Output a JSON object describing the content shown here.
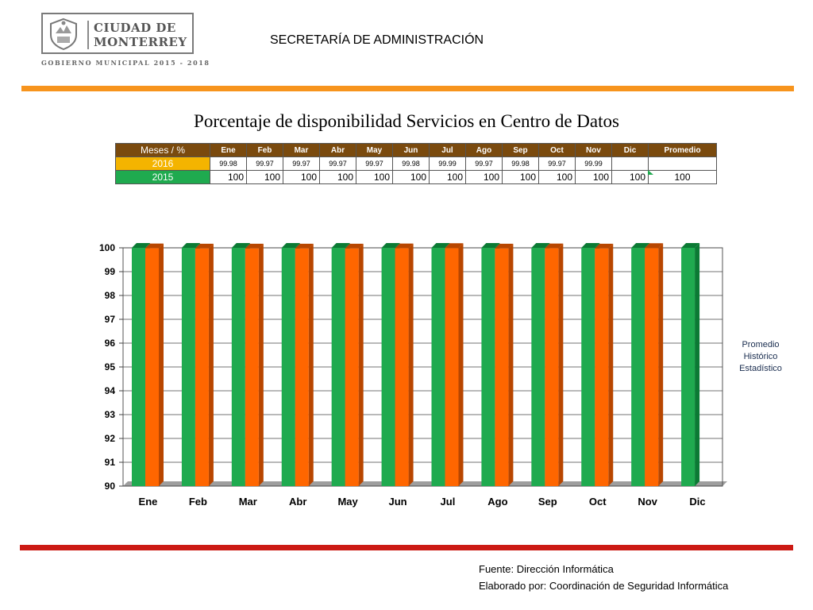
{
  "logo": {
    "line1": "CIUDAD DE",
    "line2": "MONTERREY",
    "subtitle": "GOBIERNO MUNICIPAL 2015 - 2018"
  },
  "header": {
    "title": "SECRETARÍA DE ADMINISTRACIÓN"
  },
  "colors": {
    "accent_top": "#f7941d",
    "accent_bottom": "#cc1a14",
    "series_green": "#1faa4f",
    "series_orange": "#ff6600",
    "table_header": "#7a4a0e",
    "year_2016": "#f4b400"
  },
  "table": {
    "corner": "Meses / %",
    "headers": [
      "Ene",
      "Feb",
      "Mar",
      "Abr",
      "May",
      "Jun",
      "Jul",
      "Ago",
      "Sep",
      "Oct",
      "Nov",
      "Dic",
      "Promedio"
    ],
    "rows": [
      {
        "label": "2016",
        "values": [
          "99.98",
          "99.97",
          "99.97",
          "99.97",
          "99.97",
          "99.98",
          "99.99",
          "99.97",
          "99.98",
          "99.97",
          "99.99",
          "",
          ""
        ]
      },
      {
        "label": "2015",
        "values": [
          "100",
          "100",
          "100",
          "100",
          "100",
          "100",
          "100",
          "100",
          "100",
          "100",
          "100",
          "100",
          "100"
        ]
      }
    ]
  },
  "chart_data": {
    "type": "bar",
    "title": "Porcentaje de disponibilidad Servicios en Centro de Datos",
    "categories": [
      "Ene",
      "Feb",
      "Mar",
      "Abr",
      "May",
      "Jun",
      "Jul",
      "Ago",
      "Sep",
      "Oct",
      "Nov",
      "Dic"
    ],
    "series": [
      {
        "name": "2015",
        "color": "#1faa4f",
        "values": [
          100,
          100,
          100,
          100,
          100,
          100,
          100,
          100,
          100,
          100,
          100,
          100
        ]
      },
      {
        "name": "2016",
        "color": "#ff6600",
        "values": [
          99.98,
          99.97,
          99.97,
          99.97,
          99.97,
          99.98,
          99.99,
          99.97,
          99.98,
          99.97,
          99.99,
          null
        ]
      }
    ],
    "ylim": [
      90,
      100
    ],
    "yticks": [
      "90",
      "91",
      "92",
      "93",
      "94",
      "95",
      "96",
      "97",
      "98",
      "99",
      "100"
    ],
    "grid": true,
    "legend": "none",
    "style": "3d"
  },
  "side_note": {
    "lines": [
      "Promedio",
      "Histórico",
      "Estadístico"
    ]
  },
  "footer": {
    "source": "Fuente: Dirección  Informática",
    "author": "Elaborado por: Coordinación de Seguridad Informática"
  }
}
